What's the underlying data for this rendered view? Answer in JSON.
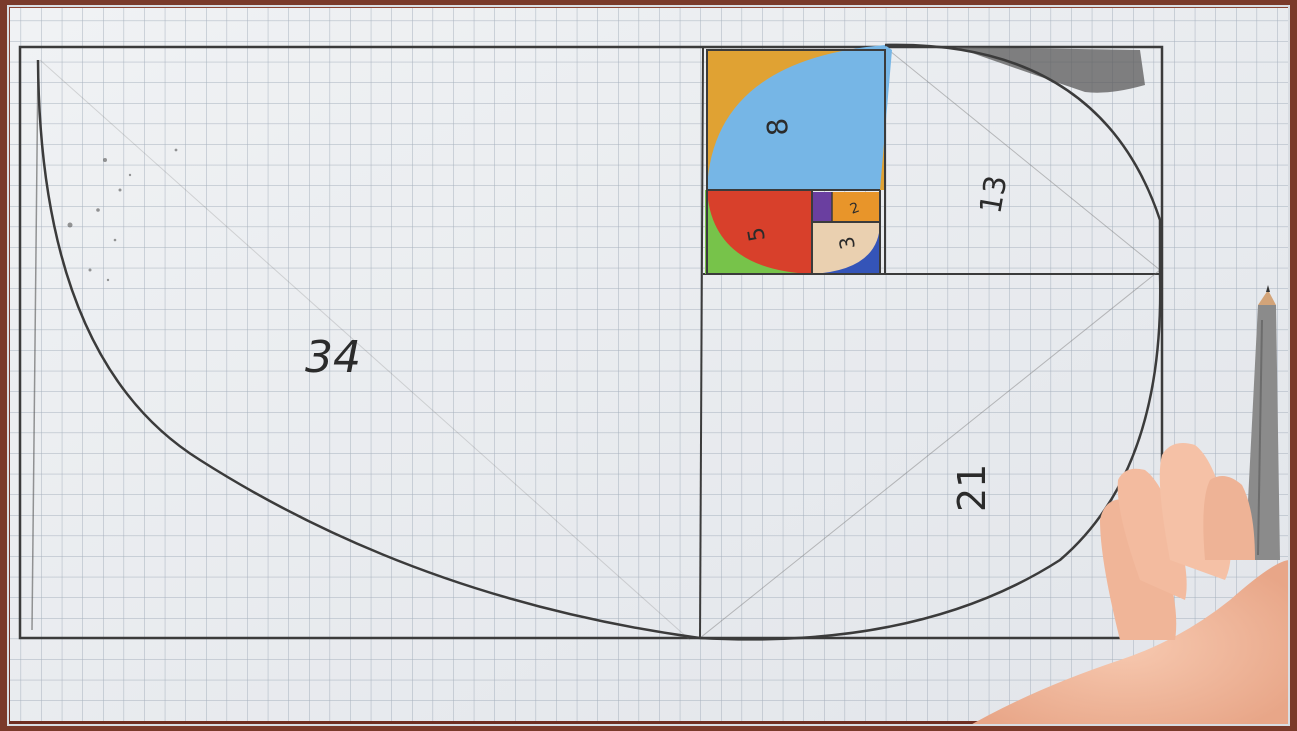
{
  "scene": {
    "description_labels": {
      "label_34": "34",
      "label_21": "21",
      "label_13": "13",
      "label_8": "8",
      "label_5": "5",
      "label_3": "3",
      "label_2": "2"
    },
    "colors": {
      "paper": "#e9ecef",
      "grid_line": "#9aa6b4",
      "pencil": "#3b3b3b",
      "square_8_fill": "#76b6e6",
      "square_orange": "#e0a233",
      "square_5_fill": "#d8402b",
      "square_green": "#77c34a",
      "square_3_fill": "#ead0b0",
      "square_2_fill": "#e8952a",
      "square_blue": "#3454b8",
      "square_purple": "#6a3fa0",
      "frame": "#7a3a2a",
      "hand": "#f1b89c",
      "pencil_body": "#8b8b8b"
    }
  }
}
